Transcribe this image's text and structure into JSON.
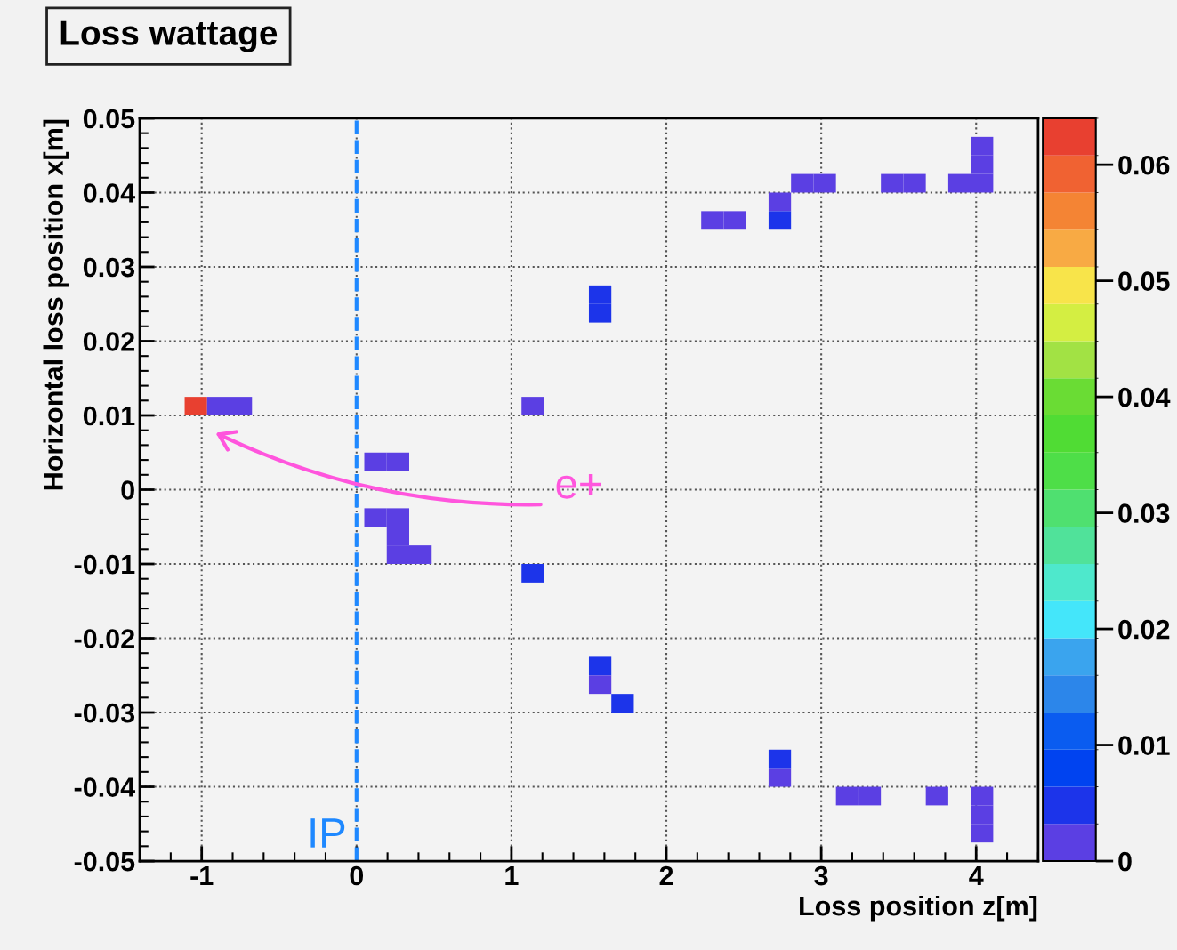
{
  "chart_data": {
    "type": "scatter",
    "title": "Loss wattage",
    "xlabel": "Loss position z[m]",
    "ylabel": "Horizontal loss position x[m]",
    "marker": "square",
    "grid": true,
    "xlim": [
      -1.4,
      4.4
    ],
    "xticks": [
      -1,
      0,
      1,
      2,
      3,
      4
    ],
    "ylim": [
      -0.05,
      0.05
    ],
    "yticks": [
      -0.05,
      -0.04,
      -0.03,
      -0.02,
      -0.01,
      0,
      0.01,
      0.02,
      0.03,
      0.04,
      0.05
    ],
    "clim": [
      0,
      0.064
    ],
    "cticks": [
      0,
      0.01,
      0.02,
      0.03,
      0.04,
      0.05,
      0.06
    ],
    "series": [
      {
        "x": [
          -1.0375,
          -0.8925,
          -0.7475,
          1.1375,
          0.1225,
          0.2675,
          1.5725,
          1.5725,
          2.2975,
          2.4425,
          2.7325,
          2.7325,
          2.8775,
          3.0225,
          3.4575,
          3.6025,
          3.8925,
          4.0375,
          4.0375,
          4.0375,
          0.1225,
          0.2675,
          0.2675,
          0.2675,
          0.4125,
          1.1375,
          1.5725,
          1.5725,
          1.7175,
          2.7325,
          2.7325,
          3.1675,
          3.3125,
          3.7475,
          4.0375,
          4.0375,
          4.0375
        ],
        "values": [
          0.01125,
          0.01125,
          0.01125,
          0.01125,
          0.00375,
          0.00375,
          0.02375,
          0.02625,
          0.03625,
          0.03625,
          0.03875,
          0.03625,
          0.04125,
          0.04125,
          0.04125,
          0.04125,
          0.04125,
          0.04125,
          0.04375,
          0.04625,
          -0.00375,
          -0.00375,
          -0.00625,
          -0.00875,
          -0.00875,
          -0.01125,
          -0.02375,
          -0.02625,
          -0.02875,
          -0.03625,
          -0.03875,
          -0.04125,
          -0.04125,
          -0.04125,
          -0.04125,
          -0.04375,
          -0.04625
        ],
        "cvalues": [
          0.063,
          0.002,
          0.002,
          0.002,
          0.002,
          0.002,
          0.005,
          0.005,
          0.002,
          0.002,
          0.002,
          0.005,
          0.002,
          0.002,
          0.002,
          0.002,
          0.002,
          0.002,
          0.002,
          0.002,
          0.002,
          0.002,
          0.002,
          0.002,
          0.002,
          0.005,
          0.005,
          0.002,
          0.005,
          0.005,
          0.002,
          0.002,
          0.002,
          0.002,
          0.002,
          0.002,
          0.002
        ]
      }
    ],
    "ref_lines": [
      {
        "axis": "x",
        "value": 0,
        "label": "IP",
        "color": "#1e88ff",
        "line_style": "dashed"
      }
    ],
    "annotations": [
      "e+"
    ]
  }
}
